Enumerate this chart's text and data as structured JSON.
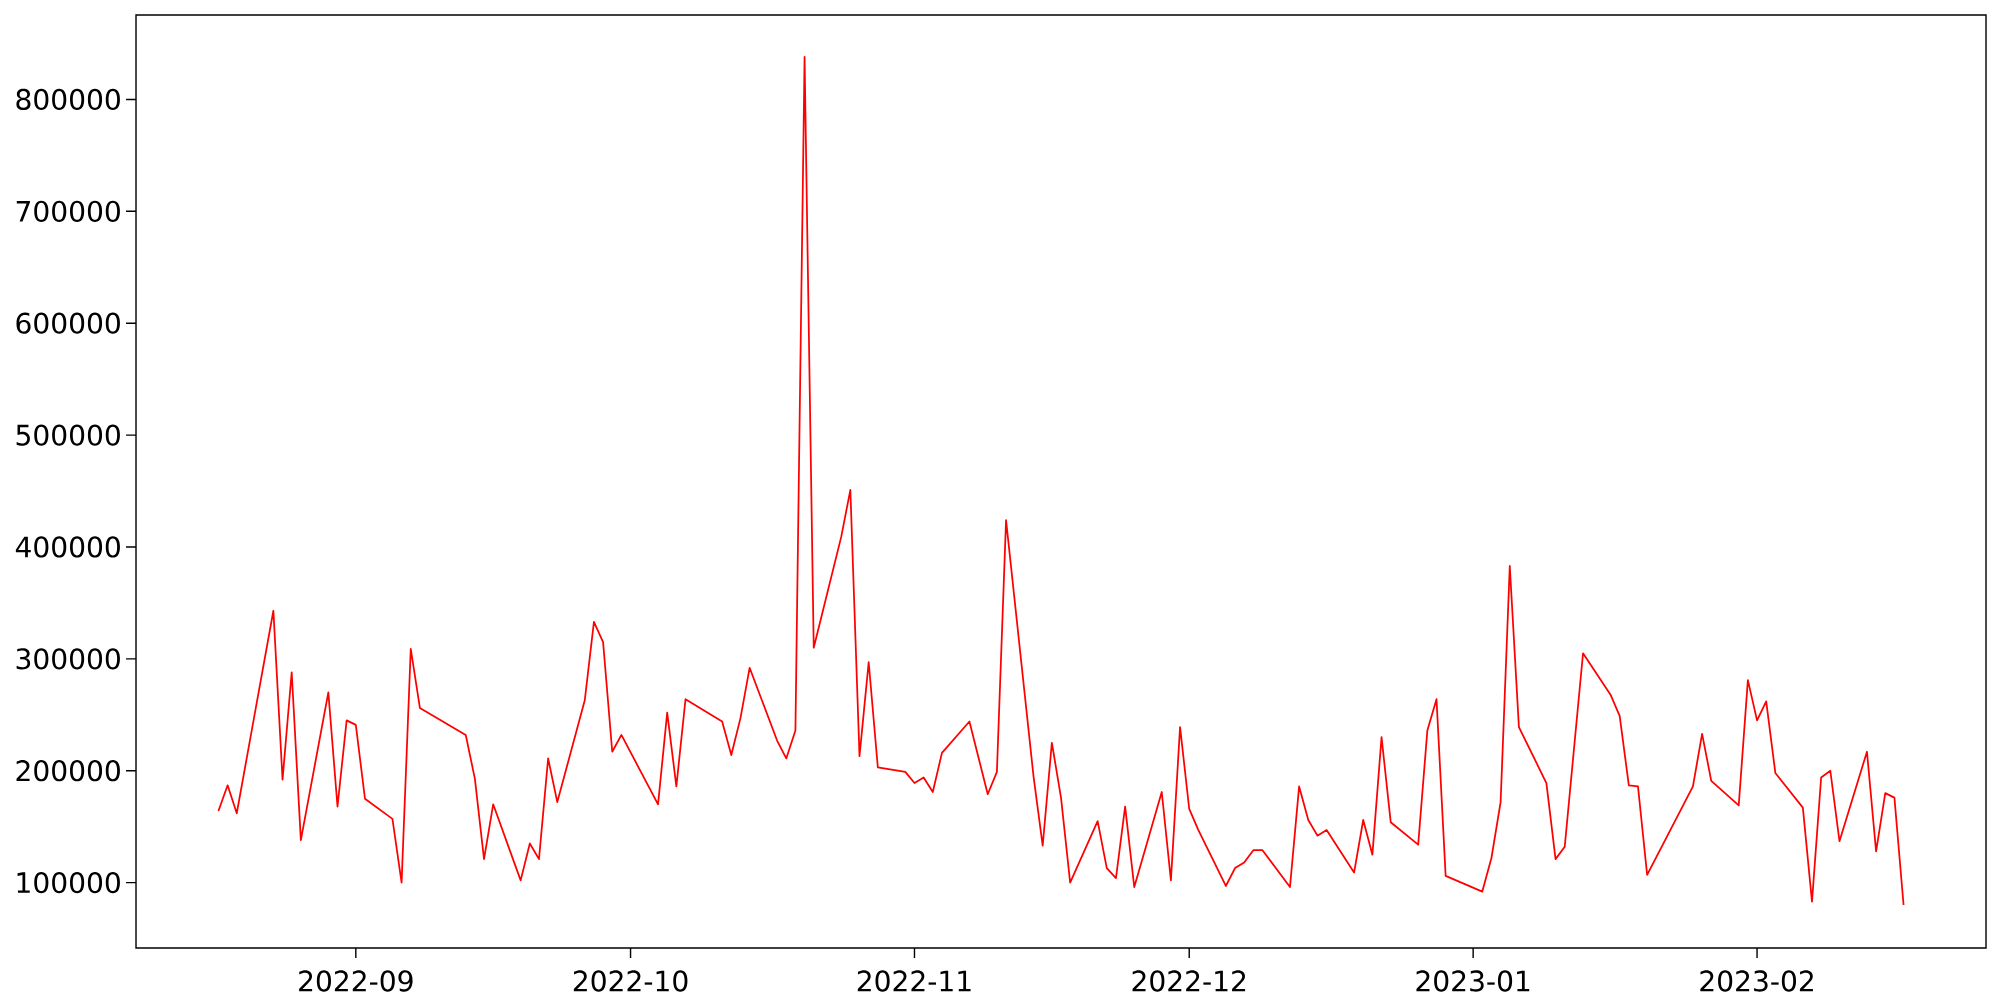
{
  "chart_data": {
    "type": "line",
    "color": "#ff0000",
    "x": [
      "2022-08-17",
      "2022-08-18",
      "2022-08-19",
      "2022-08-23",
      "2022-08-24",
      "2022-08-25",
      "2022-08-26",
      "2022-08-29",
      "2022-08-30",
      "2022-08-31",
      "2022-09-01",
      "2022-09-02",
      "2022-09-05",
      "2022-09-06",
      "2022-09-07",
      "2022-09-08",
      "2022-09-13",
      "2022-09-14",
      "2022-09-15",
      "2022-09-16",
      "2022-09-19",
      "2022-09-20",
      "2022-09-21",
      "2022-09-22",
      "2022-09-23",
      "2022-09-26",
      "2022-09-27",
      "2022-09-28",
      "2022-09-29",
      "2022-09-30",
      "2022-10-04",
      "2022-10-05",
      "2022-10-06",
      "2022-10-07",
      "2022-10-11",
      "2022-10-12",
      "2022-10-13",
      "2022-10-14",
      "2022-10-17",
      "2022-10-18",
      "2022-10-19",
      "2022-10-20",
      "2022-10-21",
      "2022-10-24",
      "2022-10-25",
      "2022-10-26",
      "2022-10-27",
      "2022-10-28",
      "2022-10-31",
      "2022-11-01",
      "2022-11-02",
      "2022-11-03",
      "2022-11-04",
      "2022-11-07",
      "2022-11-09",
      "2022-11-10",
      "2022-11-11",
      "2022-11-14",
      "2022-11-15",
      "2022-11-16",
      "2022-11-17",
      "2022-11-18",
      "2022-11-21",
      "2022-11-22",
      "2022-11-23",
      "2022-11-24",
      "2022-11-25",
      "2022-11-28",
      "2022-11-29",
      "2022-11-30",
      "2022-12-01",
      "2022-12-02",
      "2022-12-05",
      "2022-12-06",
      "2022-12-07",
      "2022-12-08",
      "2022-12-09",
      "2022-12-12",
      "2022-12-13",
      "2022-12-14",
      "2022-12-15",
      "2022-12-16",
      "2022-12-19",
      "2022-12-20",
      "2022-12-21",
      "2022-12-22",
      "2022-12-23",
      "2022-12-26",
      "2022-12-27",
      "2022-12-28",
      "2022-12-29",
      "2023-01-02",
      "2023-01-03",
      "2023-01-04",
      "2023-01-05",
      "2023-01-06",
      "2023-01-09",
      "2023-01-10",
      "2023-01-11",
      "2023-01-13",
      "2023-01-16",
      "2023-01-17",
      "2023-01-18",
      "2023-01-19",
      "2023-01-20",
      "2023-01-25",
      "2023-01-26",
      "2023-01-27",
      "2023-01-30",
      "2023-01-31",
      "2023-02-01",
      "2023-02-02",
      "2023-02-03",
      "2023-02-06",
      "2023-02-07",
      "2023-02-08",
      "2023-02-09",
      "2023-02-10",
      "2023-02-13",
      "2023-02-14",
      "2023-02-15",
      "2023-02-16",
      "2023-02-17"
    ],
    "values": [
      164000,
      187000,
      162000,
      343000,
      192000,
      288000,
      138000,
      270000,
      168000,
      245000,
      241000,
      175000,
      157000,
      100000,
      309000,
      256000,
      232000,
      193000,
      121000,
      170000,
      102000,
      135000,
      121000,
      211000,
      172000,
      263000,
      333000,
      315000,
      217000,
      232000,
      170000,
      252000,
      186000,
      264000,
      244000,
      214000,
      247000,
      292000,
      227000,
      211000,
      236000,
      838000,
      310000,
      409000,
      451000,
      213000,
      297000,
      203000,
      199000,
      189000,
      194000,
      181000,
      216000,
      244000,
      179000,
      199000,
      424000,
      195000,
      133000,
      225000,
      176000,
      100000,
      155000,
      113000,
      104000,
      168000,
      96000,
      181000,
      102000,
      239000,
      166000,
      147000,
      97000,
      113000,
      118000,
      129000,
      129000,
      96000,
      186000,
      156000,
      142000,
      147000,
      109000,
      156000,
      125000,
      230000,
      154000,
      134000,
      236000,
      264000,
      106000,
      92000,
      122000,
      172000,
      383000,
      239000,
      189000,
      121000,
      132000,
      305000,
      268000,
      249000,
      187000,
      186000,
      107000,
      186000,
      233000,
      191000,
      169000,
      281000,
      245000,
      262000,
      198000,
      167000,
      83000,
      194000,
      200000,
      137000,
      217000,
      128000,
      180000,
      176000,
      80000
    ],
    "xlim": [
      "2022-08-08",
      "2023-02-26"
    ],
    "ylim": [
      41600,
      875500
    ],
    "xticks": [
      {
        "value": "2022-09-01",
        "label": "2022-09"
      },
      {
        "value": "2022-10-01",
        "label": "2022-10"
      },
      {
        "value": "2022-11-01",
        "label": "2022-11"
      },
      {
        "value": "2022-12-01",
        "label": "2022-12"
      },
      {
        "value": "2023-01-01",
        "label": "2023-01"
      },
      {
        "value": "2023-02-01",
        "label": "2023-02"
      }
    ],
    "yticks": [
      100000,
      200000,
      300000,
      400000,
      500000,
      600000,
      700000,
      800000
    ]
  }
}
